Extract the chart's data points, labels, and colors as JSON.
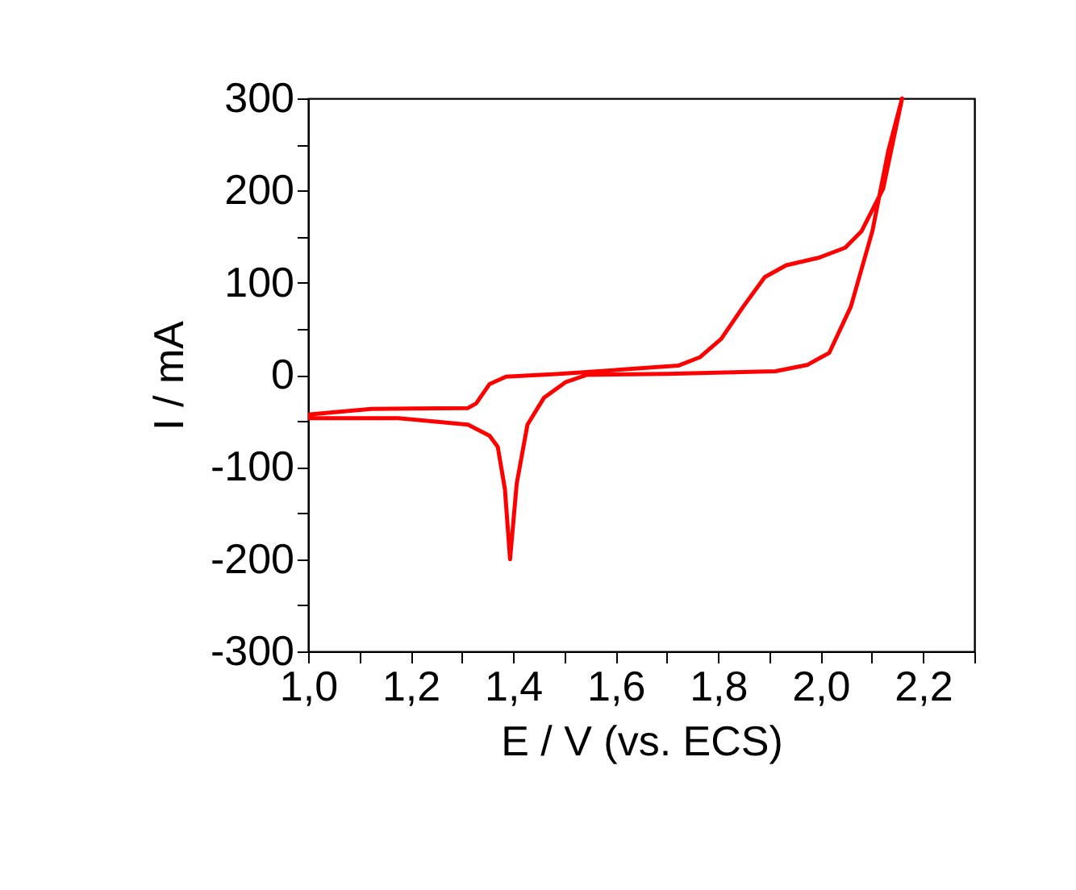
{
  "chart_data": {
    "type": "line",
    "xlabel": "E / V (vs. ECS)",
    "ylabel": "I / mA",
    "xlim": [
      1.0,
      2.3
    ],
    "ylim": [
      -300,
      300
    ],
    "xticks": [
      {
        "value": 1.0,
        "label": "1,0"
      },
      {
        "value": 1.1,
        "label": null
      },
      {
        "value": 1.2,
        "label": "1,2"
      },
      {
        "value": 1.3,
        "label": null
      },
      {
        "value": 1.4,
        "label": "1,4"
      },
      {
        "value": 1.5,
        "label": null
      },
      {
        "value": 1.6,
        "label": "1,6"
      },
      {
        "value": 1.7,
        "label": null
      },
      {
        "value": 1.8,
        "label": "1,8"
      },
      {
        "value": 1.9,
        "label": null
      },
      {
        "value": 2.0,
        "label": "2,0"
      },
      {
        "value": 2.1,
        "label": null
      },
      {
        "value": 2.2,
        "label": "2,2"
      },
      {
        "value": 2.3,
        "label": null
      }
    ],
    "yticks": [
      -300,
      {
        "value": -250,
        "label": null
      },
      -200,
      {
        "value": -150,
        "label": null
      },
      -100,
      {
        "value": -50,
        "label": null
      },
      0,
      {
        "value": 50,
        "label": null
      },
      100,
      {
        "value": 150,
        "label": null
      },
      200,
      {
        "value": 250,
        "label": null
      },
      300
    ],
    "grid": false,
    "marker": "none",
    "line_style": "solid",
    "series": [
      {
        "color": "#ff0000",
        "x": [
          1.0,
          1.123,
          1.312,
          1.328,
          1.354,
          1.386,
          1.491,
          1.722,
          1.764,
          1.806,
          1.849,
          1.891,
          1.933,
          1.996,
          2.048,
          2.08,
          2.122,
          2.159,
          2.132,
          2.101,
          2.059,
          2.017,
          1.975,
          1.912,
          1.701,
          1.544,
          1.502,
          1.46,
          1.428,
          1.407,
          1.394,
          1.384,
          1.37,
          1.354,
          1.312,
          1.176,
          1.0
        ],
        "values": [
          -43,
          -37,
          -36,
          -31,
          -10,
          -2,
          1,
          10,
          19,
          39,
          74,
          106,
          119,
          127,
          138,
          156,
          202,
          300,
          243,
          156,
          74,
          24,
          11,
          4,
          1,
          0,
          -8,
          -25,
          -54,
          -118,
          -200,
          -124,
          -78,
          -66,
          -54,
          -47,
          -47
        ]
      }
    ]
  }
}
